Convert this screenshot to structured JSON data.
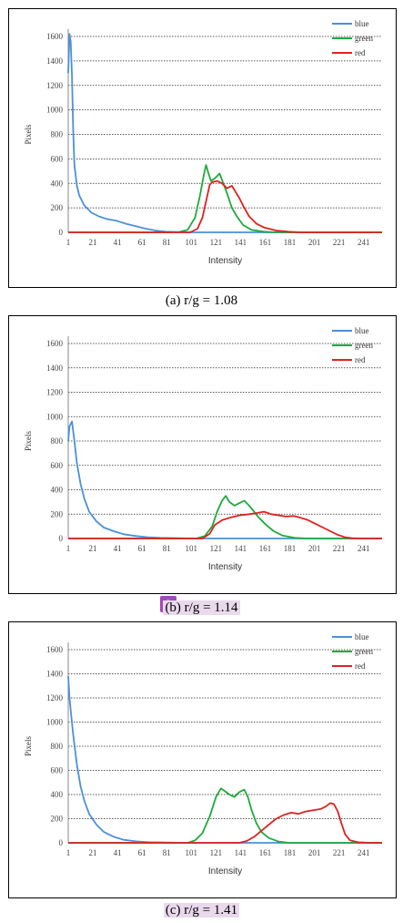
{
  "marker_label": "9",
  "chart_data": [
    {
      "type": "line",
      "caption": "(a) r/g = 1.08",
      "xlabel": "Intensity",
      "ylabel": "Pixels",
      "xlim": [
        1,
        256
      ],
      "ylim": [
        0,
        1600
      ],
      "x_ticks": [
        1,
        21,
        41,
        61,
        81,
        101,
        121,
        141,
        161,
        181,
        201,
        221,
        241
      ],
      "y_ticks": [
        0,
        200,
        400,
        600,
        800,
        1000,
        1200,
        1400,
        1600
      ],
      "grid": "horizontal dotted",
      "legend": "top-right",
      "series": [
        {
          "name": "blue",
          "color": "#4a90d9",
          "points": [
            [
              1,
              1300
            ],
            [
              2,
              1620
            ],
            [
              3,
              1560
            ],
            [
              4,
              1280
            ],
            [
              5,
              850
            ],
            [
              6,
              550
            ],
            [
              8,
              380
            ],
            [
              10,
              300
            ],
            [
              14,
              220
            ],
            [
              20,
              160
            ],
            [
              26,
              130
            ],
            [
              32,
              110
            ],
            [
              40,
              95
            ],
            [
              48,
              70
            ],
            [
              56,
              50
            ],
            [
              64,
              30
            ],
            [
              72,
              15
            ],
            [
              80,
              5
            ],
            [
              90,
              2
            ],
            [
              100,
              0
            ],
            [
              256,
              0
            ]
          ]
        },
        {
          "name": "green",
          "color": "#1faa3c",
          "points": [
            [
              1,
              0
            ],
            [
              90,
              0
            ],
            [
              98,
              20
            ],
            [
              104,
              120
            ],
            [
              108,
              300
            ],
            [
              111,
              460
            ],
            [
              113,
              550
            ],
            [
              115,
              480
            ],
            [
              117,
              420
            ],
            [
              120,
              440
            ],
            [
              124,
              480
            ],
            [
              127,
              400
            ],
            [
              130,
              320
            ],
            [
              134,
              200
            ],
            [
              138,
              130
            ],
            [
              143,
              60
            ],
            [
              150,
              20
            ],
            [
              160,
              5
            ],
            [
              170,
              0
            ],
            [
              256,
              0
            ]
          ]
        },
        {
          "name": "red",
          "color": "#e02020",
          "points": [
            [
              1,
              0
            ],
            [
              100,
              0
            ],
            [
              106,
              30
            ],
            [
              110,
              120
            ],
            [
              114,
              300
            ],
            [
              116,
              390
            ],
            [
              118,
              410
            ],
            [
              122,
              420
            ],
            [
              126,
              400
            ],
            [
              130,
              360
            ],
            [
              134,
              380
            ],
            [
              137,
              330
            ],
            [
              140,
              280
            ],
            [
              144,
              200
            ],
            [
              148,
              130
            ],
            [
              154,
              70
            ],
            [
              160,
              40
            ],
            [
              170,
              15
            ],
            [
              180,
              5
            ],
            [
              190,
              0
            ],
            [
              256,
              0
            ]
          ]
        }
      ]
    },
    {
      "type": "line",
      "caption": "(b) r/g = 1.14",
      "xlabel": "Intensity",
      "ylabel": "Pixels",
      "xlim": [
        1,
        256
      ],
      "ylim": [
        0,
        1600
      ],
      "x_ticks": [
        1,
        21,
        41,
        61,
        81,
        101,
        121,
        141,
        161,
        181,
        201,
        221,
        241
      ],
      "y_ticks": [
        0,
        200,
        400,
        600,
        800,
        1000,
        1200,
        1400,
        1600
      ],
      "grid": "horizontal dotted",
      "legend": "top-right",
      "series": [
        {
          "name": "blue",
          "color": "#4a90d9",
          "points": [
            [
              1,
              800
            ],
            [
              2,
              920
            ],
            [
              4,
              960
            ],
            [
              6,
              800
            ],
            [
              8,
              620
            ],
            [
              11,
              450
            ],
            [
              14,
              330
            ],
            [
              18,
              220
            ],
            [
              24,
              140
            ],
            [
              30,
              90
            ],
            [
              38,
              60
            ],
            [
              46,
              35
            ],
            [
              56,
              20
            ],
            [
              66,
              10
            ],
            [
              76,
              5
            ],
            [
              90,
              2
            ],
            [
              100,
              0
            ],
            [
              256,
              0
            ]
          ]
        },
        {
          "name": "green",
          "color": "#1faa3c",
          "points": [
            [
              1,
              0
            ],
            [
              105,
              0
            ],
            [
              112,
              20
            ],
            [
              118,
              100
            ],
            [
              122,
              220
            ],
            [
              126,
              310
            ],
            [
              129,
              350
            ],
            [
              132,
              300
            ],
            [
              136,
              270
            ],
            [
              140,
              290
            ],
            [
              144,
              310
            ],
            [
              148,
              270
            ],
            [
              152,
              220
            ],
            [
              156,
              170
            ],
            [
              162,
              110
            ],
            [
              168,
              60
            ],
            [
              175,
              25
            ],
            [
              185,
              5
            ],
            [
              195,
              0
            ],
            [
              256,
              0
            ]
          ]
        },
        {
          "name": "red",
          "color": "#e02020",
          "points": [
            [
              1,
              0
            ],
            [
              110,
              0
            ],
            [
              116,
              40
            ],
            [
              120,
              110
            ],
            [
              126,
              150
            ],
            [
              132,
              170
            ],
            [
              140,
              190
            ],
            [
              148,
              200
            ],
            [
              155,
              210
            ],
            [
              160,
              220
            ],
            [
              166,
              200
            ],
            [
              172,
              190
            ],
            [
              178,
              180
            ],
            [
              184,
              185
            ],
            [
              190,
              170
            ],
            [
              196,
              150
            ],
            [
              202,
              120
            ],
            [
              208,
              90
            ],
            [
              214,
              60
            ],
            [
              220,
              30
            ],
            [
              226,
              10
            ],
            [
              232,
              2
            ],
            [
              240,
              0
            ],
            [
              256,
              0
            ]
          ]
        }
      ]
    },
    {
      "type": "line",
      "caption": "(c) r/g = 1.41",
      "xlabel": "Intensity",
      "ylabel": "Pixels",
      "xlim": [
        1,
        256
      ],
      "ylim": [
        0,
        1600
      ],
      "x_ticks": [
        1,
        21,
        41,
        61,
        81,
        101,
        121,
        141,
        161,
        181,
        201,
        221,
        241
      ],
      "y_ticks": [
        0,
        200,
        400,
        600,
        800,
        1000,
        1200,
        1400,
        1600
      ],
      "grid": "horizontal dotted",
      "legend": "top-right",
      "series": [
        {
          "name": "blue",
          "color": "#4a90d9",
          "points": [
            [
              1,
              1380
            ],
            [
              2,
              1200
            ],
            [
              3,
              1100
            ],
            [
              5,
              900
            ],
            [
              8,
              650
            ],
            [
              11,
              470
            ],
            [
              14,
              350
            ],
            [
              18,
              240
            ],
            [
              24,
              150
            ],
            [
              30,
              90
            ],
            [
              38,
              50
            ],
            [
              46,
              25
            ],
            [
              56,
              12
            ],
            [
              66,
              5
            ],
            [
              80,
              2
            ],
            [
              95,
              0
            ],
            [
              256,
              0
            ]
          ]
        },
        {
          "name": "green",
          "color": "#1faa3c",
          "points": [
            [
              1,
              0
            ],
            [
              98,
              0
            ],
            [
              104,
              20
            ],
            [
              110,
              80
            ],
            [
              116,
              220
            ],
            [
              121,
              380
            ],
            [
              125,
              450
            ],
            [
              128,
              430
            ],
            [
              132,
              400
            ],
            [
              136,
              380
            ],
            [
              140,
              420
            ],
            [
              144,
              440
            ],
            [
              147,
              380
            ],
            [
              150,
              270
            ],
            [
              154,
              160
            ],
            [
              158,
              90
            ],
            [
              164,
              40
            ],
            [
              172,
              10
            ],
            [
              180,
              0
            ],
            [
              256,
              0
            ]
          ]
        },
        {
          "name": "red",
          "color": "#e02020",
          "points": [
            [
              1,
              0
            ],
            [
              140,
              0
            ],
            [
              146,
              15
            ],
            [
              152,
              50
            ],
            [
              158,
              100
            ],
            [
              164,
              150
            ],
            [
              170,
              200
            ],
            [
              176,
              230
            ],
            [
              182,
              250
            ],
            [
              188,
              240
            ],
            [
              194,
              260
            ],
            [
              200,
              270
            ],
            [
              206,
              280
            ],
            [
              210,
              300
            ],
            [
              214,
              330
            ],
            [
              217,
              320
            ],
            [
              220,
              260
            ],
            [
              223,
              160
            ],
            [
              226,
              70
            ],
            [
              230,
              20
            ],
            [
              236,
              5
            ],
            [
              245,
              0
            ],
            [
              256,
              0
            ]
          ]
        }
      ]
    }
  ]
}
